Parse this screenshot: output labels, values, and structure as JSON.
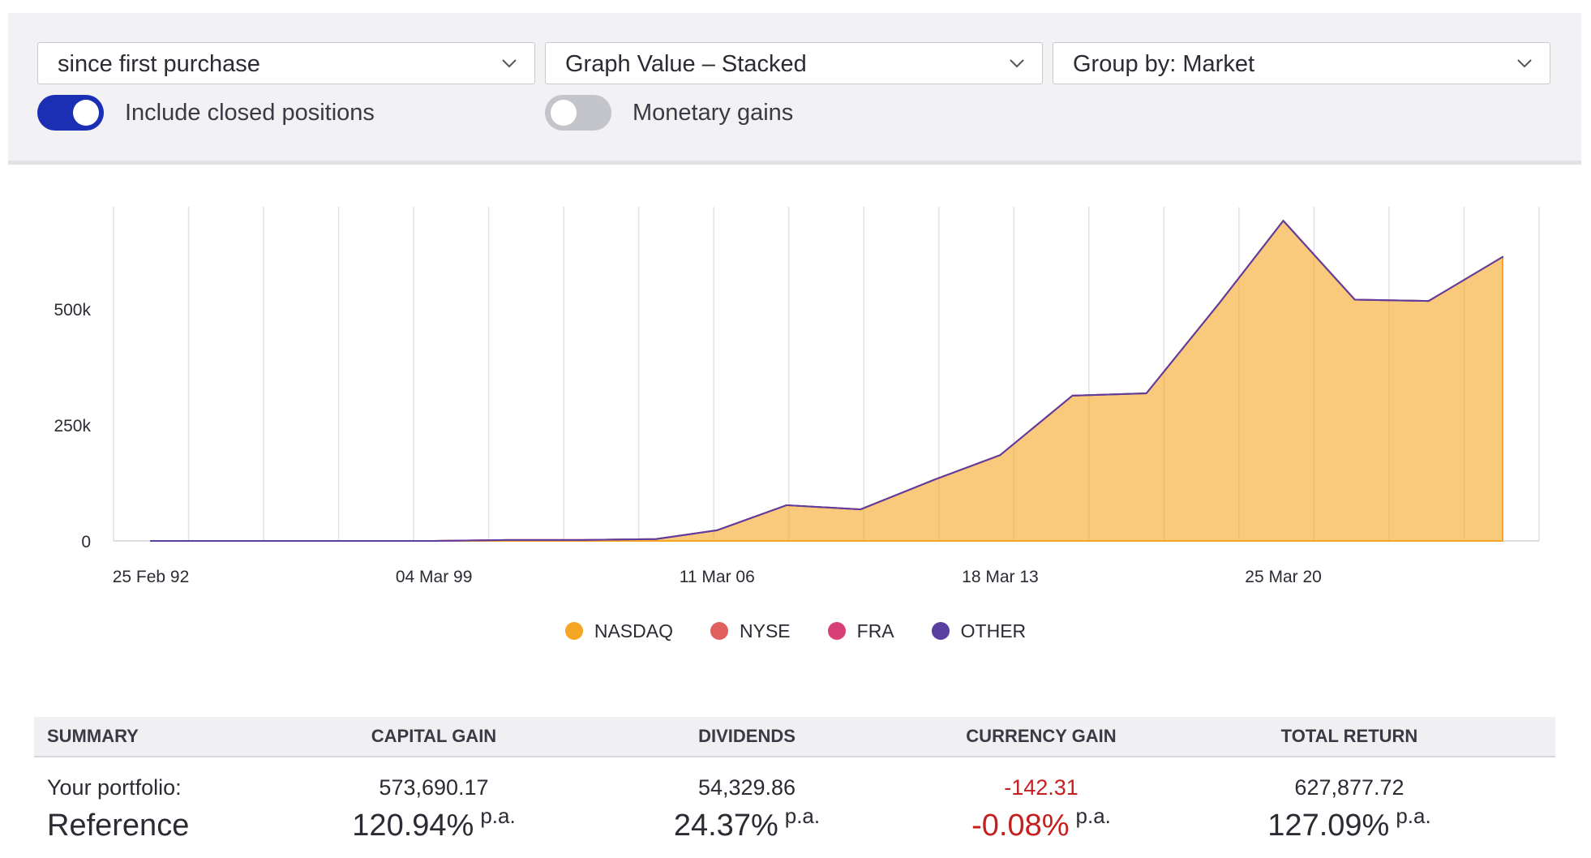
{
  "controls": {
    "period_select": "since first purchase",
    "graph_select": "Graph Value – Stacked",
    "group_select": "Group by: Market",
    "include_closed_label": "Include closed positions",
    "include_closed_on": true,
    "monetary_label": "Monetary gains",
    "monetary_on": false
  },
  "chart_data": {
    "type": "area",
    "stacked": true,
    "x_tick_labels": [
      "25 Feb 92",
      "04 Mar 99",
      "11 Mar 06",
      "18 Mar 13",
      "25 Mar 20"
    ],
    "y_tick_labels": [
      "0",
      "250k",
      "500k"
    ],
    "ylim": [
      0,
      720000
    ],
    "grid": "vertical",
    "legend_position": "bottom-center",
    "x_dates": [
      "1992-02-25",
      "1993-12-01",
      "1995-10-01",
      "1997-08-01",
      "1999-03-04",
      "2001-01-01",
      "2002-11-01",
      "2004-09-01",
      "2006-03-11",
      "2007-12-01",
      "2009-10-01",
      "2011-08-01",
      "2013-03-18",
      "2015-01-01",
      "2016-11-01",
      "2018-09-01",
      "2020-03-25",
      "2022-01-01",
      "2023-11-01",
      "2025-09-01"
    ],
    "series": [
      {
        "name": "NASDAQ",
        "color": "#f5a623",
        "values": [
          0,
          0,
          0,
          0,
          0,
          2000,
          2000,
          4000,
          23000,
          77000,
          68000,
          132000,
          185000,
          313000,
          318000,
          515000,
          690000,
          520000,
          517000,
          612000
        ]
      },
      {
        "name": "NYSE",
        "color": "#e05f5f",
        "values": [
          0,
          0,
          0,
          0,
          0,
          0,
          0,
          0,
          0,
          0,
          0,
          0,
          0,
          0,
          0,
          0,
          0,
          0,
          0,
          0
        ]
      },
      {
        "name": "FRA",
        "color": "#d64074",
        "values": [
          0,
          0,
          0,
          0,
          0,
          0,
          0,
          0,
          0,
          0,
          0,
          0,
          0,
          0,
          0,
          0,
          0,
          0,
          0,
          0
        ]
      },
      {
        "name": "OTHER",
        "color": "#5b3fa0",
        "values": [
          0,
          0,
          0,
          0,
          0,
          0,
          0,
          0,
          0,
          0,
          0,
          0,
          0,
          0,
          0,
          0,
          0,
          0,
          0,
          0
        ]
      }
    ]
  },
  "summary": {
    "headers": [
      "SUMMARY",
      "CAPITAL GAIN",
      "DIVIDENDS",
      "CURRENCY GAIN",
      "TOTAL RETURN"
    ],
    "portfolio_label": "Your portfolio:",
    "portfolio_values": [
      "573,690.17",
      "54,329.86",
      "-142.31",
      "627,877.72"
    ],
    "reference_label": "Reference",
    "reference_values": [
      "120.94%",
      "24.37%",
      "-0.08%",
      "127.09%"
    ],
    "pa_label": "p.a.",
    "negative_color": "#c51f1f"
  }
}
